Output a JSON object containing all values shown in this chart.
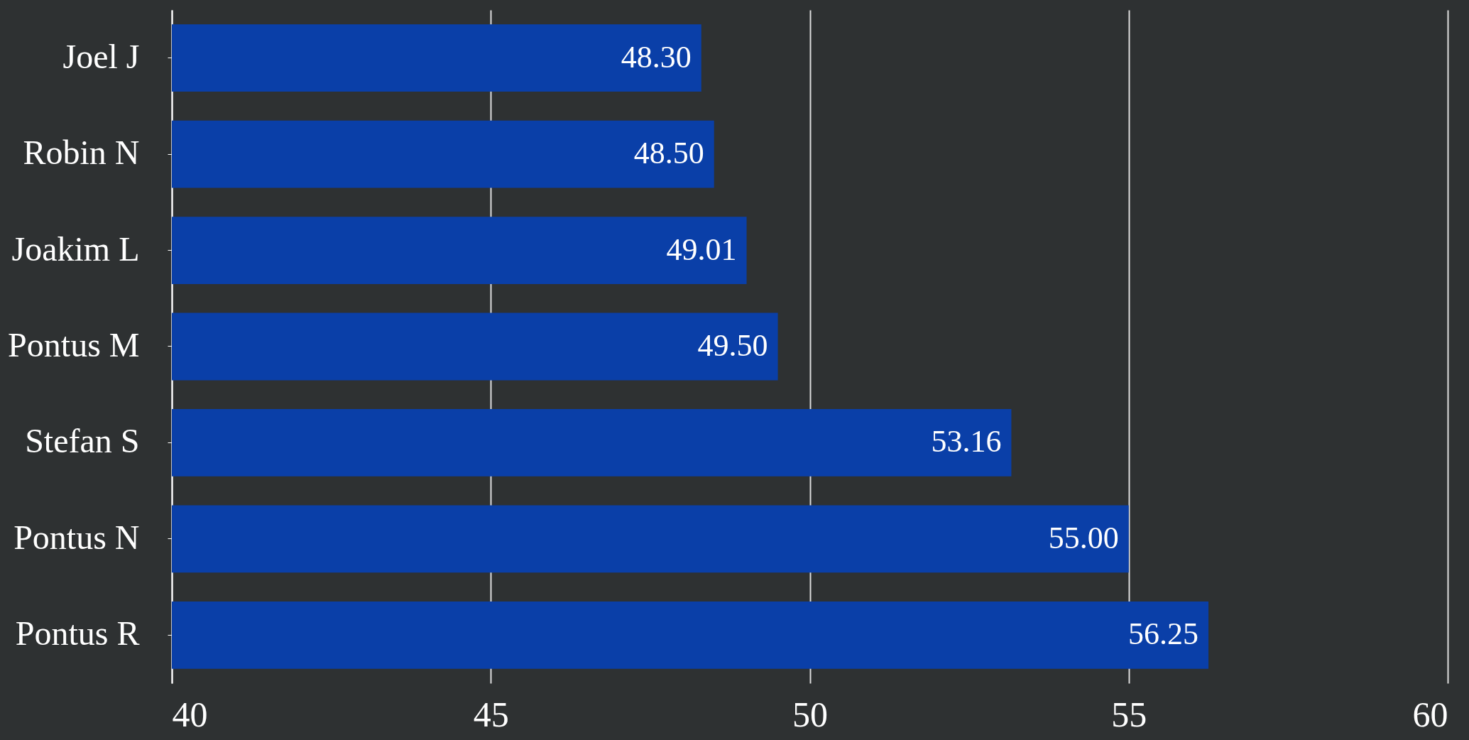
{
  "chart_data": {
    "type": "bar",
    "orientation": "horizontal",
    "categories": [
      "Joel J",
      "Robin N",
      "Joakim L",
      "Pontus M",
      "Stefan S",
      "Pontus N",
      "Pontus R"
    ],
    "values": [
      48.3,
      48.5,
      49.01,
      49.5,
      53.16,
      55.0,
      56.25
    ],
    "value_labels": [
      "48.30",
      "48.50",
      "49.01",
      "49.50",
      "53.16",
      "55.00",
      "56.25"
    ],
    "color": "#0a3fa8",
    "xlim": [
      40,
      60
    ],
    "xticks": [
      40,
      45,
      50,
      55,
      60
    ],
    "grid": "x"
  }
}
